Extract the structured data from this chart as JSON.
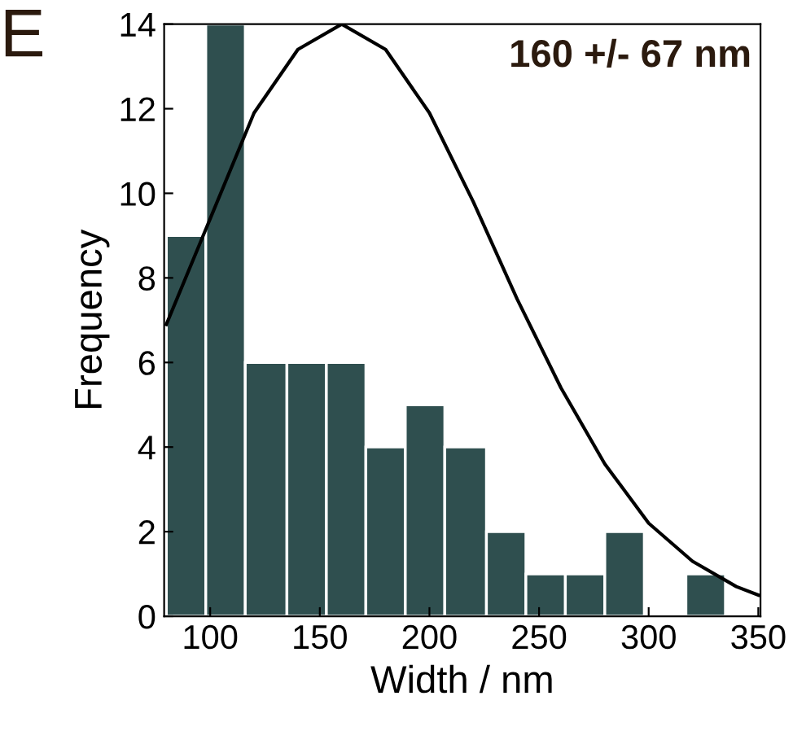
{
  "chart_data": {
    "type": "histogram",
    "xlabel": "Width / nm",
    "ylabel": "Frequency",
    "annotations": [
      "E",
      "160 +/- 67 nm"
    ],
    "bins": [
      80,
      98,
      116,
      135,
      153,
      171,
      189,
      207,
      226,
      244,
      262,
      280,
      298,
      317,
      335
    ],
    "values": [
      9,
      14,
      6,
      6,
      6,
      4,
      5,
      4,
      2,
      1,
      1,
      2,
      0,
      1
    ],
    "color": "#2f4f4f",
    "series": [
      {
        "type": "line",
        "color": "#000000",
        "x": [
          80,
          100,
          120,
          140,
          160,
          180,
          200,
          220,
          240,
          260,
          280,
          300,
          320,
          340,
          350
        ],
        "values": [
          6.9,
          9.4,
          11.9,
          13.4,
          14,
          13.4,
          11.9,
          9.8,
          7.5,
          5.4,
          3.6,
          2.2,
          1.3,
          0.7,
          0.5
        ]
      }
    ],
    "xlim": [
      79,
      351
    ],
    "xticks": [
      100,
      150,
      200,
      250,
      300,
      350
    ],
    "ylim": [
      0,
      14
    ],
    "yticks": [
      0,
      2,
      4,
      6,
      8,
      10,
      12,
      14
    ],
    "grid": false,
    "legend": false
  }
}
